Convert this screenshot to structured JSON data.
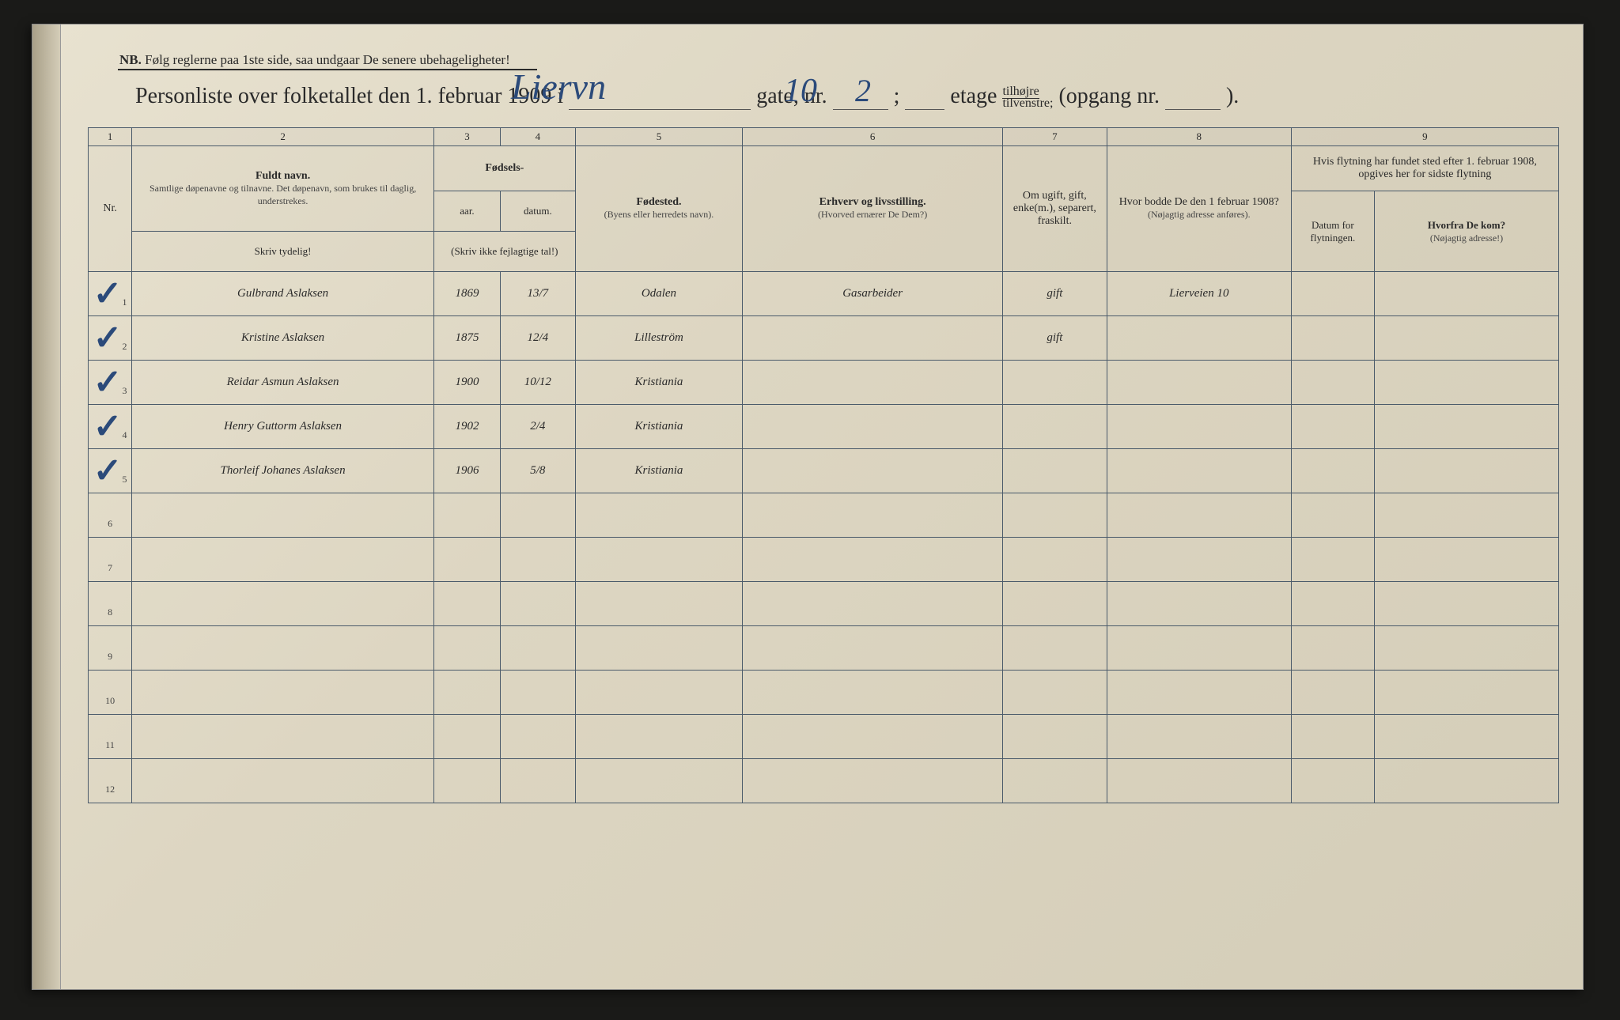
{
  "header": {
    "nb_prefix": "NB.",
    "nb_text": "Følg reglerne paa 1ste side, saa undgaar De senere ubehageligheter!",
    "title_prefix": "Personliste over folketallet den 1. februar 1909 i",
    "gate_label": "gate, nr.",
    "etage_label": "etage",
    "tilhojre": "tilhøjre",
    "tilvenstre": "tilvenstre;",
    "opgang_label": "(opgang nr.",
    "opgang_close": ").",
    "street_hand": "Liervn",
    "nr_hand": "10",
    "semicolon": ";",
    "etage_hand": "2"
  },
  "columns": {
    "c1": "1",
    "c2": "2",
    "c3": "3",
    "c4": "4",
    "c5": "5",
    "c6": "6",
    "c7": "7",
    "c8": "8",
    "c9": "9",
    "nr": "Nr.",
    "fuldt_navn": "Fuldt navn.",
    "fuldt_sub": "Samtlige døpenavne og tilnavne. Det døpenavn, som brukes til daglig, understrekes.",
    "skriv_tydelig": "Skriv tydelig!",
    "fodsels": "Fødsels-",
    "aar": "aar.",
    "datum": "datum.",
    "skriv_ikke": "(Skriv ikke fejlagtige tal!)",
    "fodested": "Fødested.",
    "fodested_sub": "(Byens eller herredets navn).",
    "erhverv": "Erhverv og livsstilling.",
    "erhverv_sub": "(Hvorved ernærer De Dem?)",
    "ugift": "Om ugift, gift, enke(m.), separert, fraskilt.",
    "hvor_bodde": "Hvor bodde De den 1 februar 1908?",
    "hvor_sub": "(Nøjagtig adresse anføres).",
    "flytning": "Hvis flytning har fundet sted efter 1. februar 1908, opgives her for sidste flytning",
    "datum_flyt": "Datum for flytningen.",
    "hvorfra": "Hvorfra De kom?",
    "hvorfra_sub": "(Nøjagtig adresse!)"
  },
  "rows": [
    {
      "nr": "1",
      "check": "✓",
      "name": "Gulbrand Aslaksen",
      "year": "1869",
      "date": "13/7",
      "place": "Odalen",
      "occ": "Gasarbeider",
      "marital": "gift",
      "prev": "Lierveien 10",
      "movedate": "",
      "movefrom": ""
    },
    {
      "nr": "2",
      "check": "✓",
      "name": "Kristine Aslaksen",
      "year": "1875",
      "date": "12/4",
      "place": "Lilleström",
      "occ": "",
      "marital": "gift",
      "prev": "",
      "movedate": "",
      "movefrom": ""
    },
    {
      "nr": "3",
      "check": "✓",
      "name": "Reidar Asmun Aslaksen",
      "year": "1900",
      "date": "10/12",
      "place": "Kristiania",
      "occ": "",
      "marital": "",
      "prev": "",
      "movedate": "",
      "movefrom": ""
    },
    {
      "nr": "4",
      "check": "✓",
      "name": "Henry Guttorm Aslaksen",
      "year": "1902",
      "date": "2/4",
      "place": "Kristiania",
      "occ": "",
      "marital": "",
      "prev": "",
      "movedate": "",
      "movefrom": ""
    },
    {
      "nr": "5",
      "check": "✓",
      "name": "Thorleif Johanes Aslaksen",
      "year": "1906",
      "date": "5/8",
      "place": "Kristiania",
      "occ": "",
      "marital": "",
      "prev": "",
      "movedate": "",
      "movefrom": ""
    },
    {
      "nr": "6",
      "check": "",
      "name": "",
      "year": "",
      "date": "",
      "place": "",
      "occ": "",
      "marital": "",
      "prev": "",
      "movedate": "",
      "movefrom": ""
    },
    {
      "nr": "7",
      "check": "",
      "name": "",
      "year": "",
      "date": "",
      "place": "",
      "occ": "",
      "marital": "",
      "prev": "",
      "movedate": "",
      "movefrom": ""
    },
    {
      "nr": "8",
      "check": "",
      "name": "",
      "year": "",
      "date": "",
      "place": "",
      "occ": "",
      "marital": "",
      "prev": "",
      "movedate": "",
      "movefrom": ""
    },
    {
      "nr": "9",
      "check": "",
      "name": "",
      "year": "",
      "date": "",
      "place": "",
      "occ": "",
      "marital": "",
      "prev": "",
      "movedate": "",
      "movefrom": ""
    },
    {
      "nr": "10",
      "check": "",
      "name": "",
      "year": "",
      "date": "",
      "place": "",
      "occ": "",
      "marital": "",
      "prev": "",
      "movedate": "",
      "movefrom": ""
    },
    {
      "nr": "11",
      "check": "",
      "name": "",
      "year": "",
      "date": "",
      "place": "",
      "occ": "",
      "marital": "",
      "prev": "",
      "movedate": "",
      "movefrom": ""
    },
    {
      "nr": "12",
      "check": "",
      "name": "",
      "year": "",
      "date": "",
      "place": "",
      "occ": "",
      "marital": "",
      "prev": "",
      "movedate": "",
      "movefrom": ""
    }
  ],
  "style": {
    "paper_bg": "#ddd6c2",
    "ink_print": "#2a2a2a",
    "ink_hand": "#2b4a7a",
    "rule_color": "#4a5a6a"
  }
}
